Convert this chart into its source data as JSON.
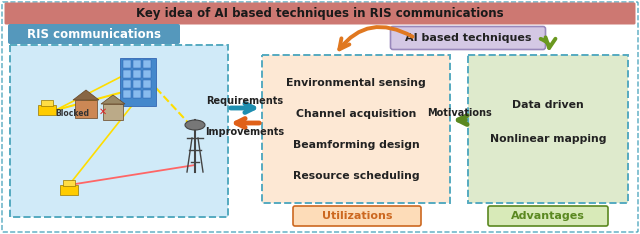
{
  "title": "Key idea of AI based techniques in RIS communications",
  "title_bg": "#cd7872",
  "title_fg": "#1a1a1a",
  "outer_bg": "#ffffff",
  "outer_border": "#55aac0",
  "ris_label": "RIS communications",
  "ris_label_bg": "#5598bc",
  "ris_label_fg": "#ffffff",
  "ris_box_bg": "#d0eaf8",
  "ris_box_border": "#55aac0",
  "util_items": [
    "Environmental sensing",
    "Channel acquisition",
    "Beamforming design",
    "Resource scheduling"
  ],
  "util_box_bg": "#fde8d4",
  "util_box_border": "#55aac0",
  "util_label": "Utilizations",
  "util_label_fg": "#cc6820",
  "util_label_bg": "#fddcb8",
  "adv_items": [
    "Data driven",
    "Nonlinear mapping"
  ],
  "adv_box_bg": "#deeacc",
  "adv_box_border": "#55aac0",
  "adv_label": "Advantages",
  "adv_label_fg": "#5a8820",
  "adv_label_bg": "#d8eab8",
  "ai_label": "AI based techniques",
  "ai_box_bg": "#d4c8e4",
  "ai_box_border": "#9988bb",
  "req_label": "Requirements",
  "imp_label": "Improvements",
  "mot_label": "Motivations",
  "req_arrow_color": "#1e8eb0",
  "imp_arrow_color": "#e06018",
  "mot_arrow_color": "#5a8820",
  "top_arrow_orange": "#e07820",
  "top_arrow_green": "#6a9820",
  "text_color": "#222222"
}
